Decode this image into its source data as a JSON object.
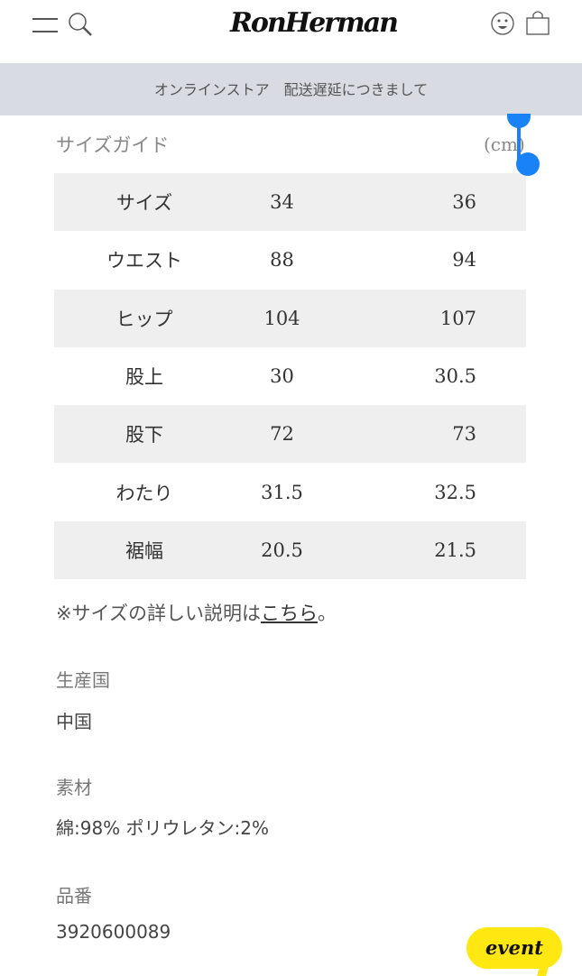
{
  "header": {
    "logo": "RonHerman",
    "icons": [
      "menu-icon",
      "search-icon",
      "face-icon",
      "bag-icon"
    ]
  },
  "banner": {
    "text": "オンラインストア　配送遅延につきまして"
  },
  "size_guide": {
    "title": "サイズガイド",
    "unit": "(cm)",
    "rows": [
      [
        "サイズ",
        "34",
        "36"
      ],
      [
        "ウエスト",
        "88",
        "94"
      ],
      [
        "ヒップ",
        "104",
        "107"
      ],
      [
        "股上",
        "30",
        "30.5"
      ],
      [
        "股下",
        "72",
        "73"
      ],
      [
        "わたり",
        "31.5",
        "32.5"
      ],
      [
        "裾幅",
        "20.5",
        "21.5"
      ]
    ],
    "note_prefix": "※サイズの詳しい説明は",
    "note_link": "こちら",
    "note_suffix": "。"
  },
  "details": [
    {
      "label": "生産国",
      "value": "中国"
    },
    {
      "label": "素材",
      "value": "綿:98% ポリウレタン:2%"
    },
    {
      "label": "品番",
      "value": "3920600089"
    }
  ],
  "event_button": {
    "label": "event",
    "color": "#ffe812"
  },
  "colors": {
    "banner": "#d8dbe2",
    "selection_handle": "#1a82f7"
  }
}
